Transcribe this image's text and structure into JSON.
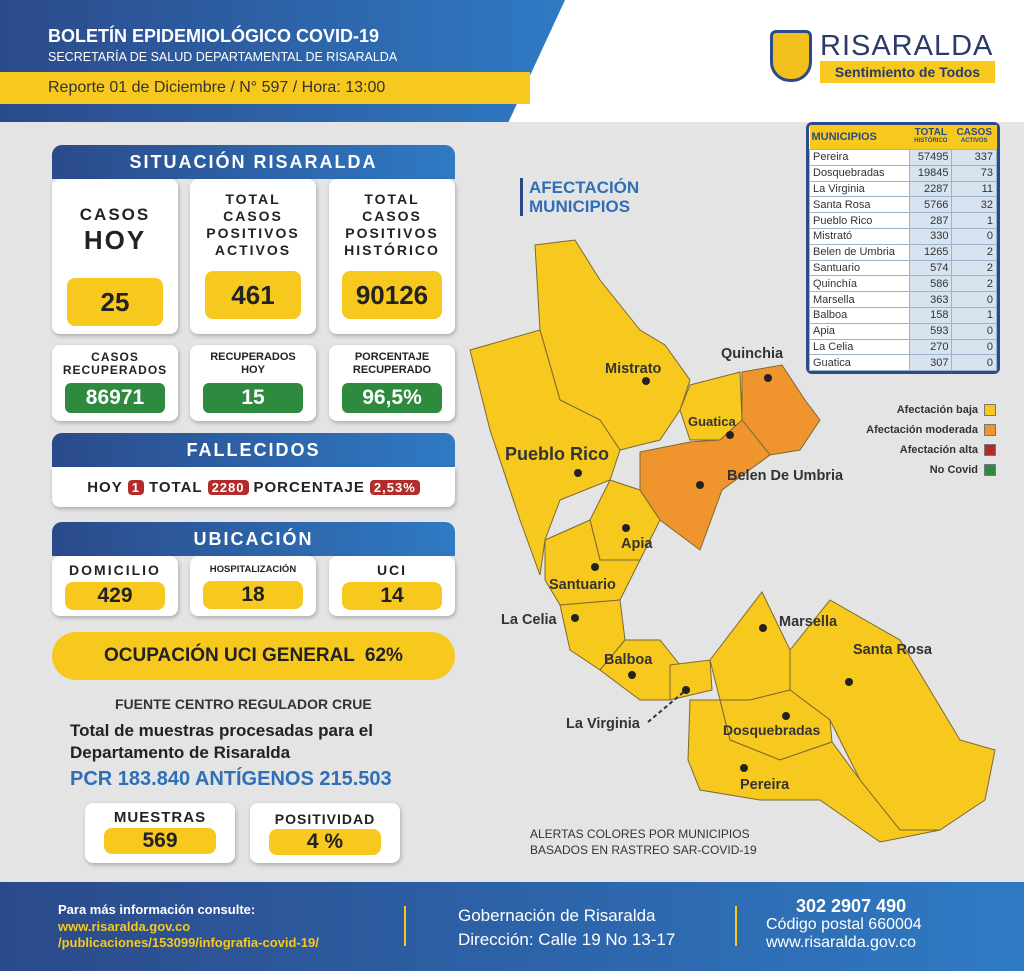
{
  "header": {
    "title": "BOLETÍN EPIDEMIOLÓGICO COVID-19",
    "subtitle": "SECRETARÍA DE SALUD DEPARTAMENTAL DE RISARALDA",
    "report": "Reporte 01 de Diciembre / N° 597 / Hora: 13:00"
  },
  "logo": {
    "name": "RISARALDA",
    "tagline": "Sentimiento de Todos"
  },
  "situacion": {
    "title": "SITUACIÓN RISARALDA",
    "casos_hoy": {
      "label1": "CASOS",
      "label2": "HOY",
      "value": "25"
    },
    "activos": {
      "label": "TOTAL CASOS POSITIVOS ACTIVOS",
      "value": "461"
    },
    "historico": {
      "label": "TOTAL CASOS POSITIVOS HISTÓRICO",
      "value": "90126"
    },
    "recuperados": {
      "label": "CASOS RECUPERADOS",
      "value": "86971"
    },
    "recuperados_hoy": {
      "label": "RECUPERADOS HOY",
      "value": "15"
    },
    "porcentaje": {
      "label": "PORCENTAJE RECUPERADO",
      "value": "96,5%"
    }
  },
  "fallecidos": {
    "title": "FALLECIDOS",
    "hoy_label": "HOY",
    "hoy": "1",
    "total_label": "TOTAL",
    "total": "2280",
    "pct_label": "PORCENTAJE",
    "pct": "2,53%"
  },
  "ubicacion": {
    "title": "UBICACIÓN",
    "domicilio_label": "DOMICILIO",
    "domicilio": "429",
    "hosp_label": "HOSPITALIZACIÓN",
    "hosp": "18",
    "uci_label": "UCI",
    "uci": "14"
  },
  "ocupacion": {
    "label": "OCUPACIÓN UCI GENERAL",
    "value": "62%"
  },
  "fuente": "FUENTE CENTRO REGULADOR CRUE",
  "muestras_text": "Total de muestras procesadas para el Departamento de Risaralda",
  "pcr": "PCR 183.840 ANTÍGENOS 215.503",
  "muestras": {
    "label": "MUESTRAS",
    "value": "569"
  },
  "positividad": {
    "label": "POSITIVIDAD",
    "value": "4 %"
  },
  "map": {
    "title1": "AFECTACIÓN",
    "title2": "MUNICIPIOS",
    "labels": {
      "mistrato": "Mistrato",
      "quinchia": "Quinchia",
      "guatica": "Guatica",
      "pueblo_rico": "Pueblo Rico",
      "belen": "Belen De Umbria",
      "apia": "Apia",
      "santuario": "Santuario",
      "la_celia": "La Celia",
      "balboa": "Balboa",
      "la_virginia": "La Virginia",
      "marsella": "Marsella",
      "santa_rosa": "Santa Rosa",
      "dosquebradas": "Dosquebradas",
      "pereira": "Pereira"
    },
    "note1": "ALERTAS COLORES POR MUNICIPIOS",
    "note2": "BASADOS EN RASTREO SAR-COVID-19",
    "legend": [
      {
        "label": "Afectación baja",
        "color": "#f7c81e"
      },
      {
        "label": "Afectación moderada",
        "color": "#f0952e"
      },
      {
        "label": "Afectación alta",
        "color": "#b22c2c"
      },
      {
        "label": "No Covid",
        "color": "#2e8a3e"
      }
    ]
  },
  "table": {
    "headers": [
      "MUNICIPIOS",
      "TOTAL",
      "HISTÓRICO",
      "CASOS",
      "ACTIVOS"
    ],
    "rows": [
      [
        "Pereira",
        "57495",
        "337"
      ],
      [
        "Dosquebradas",
        "19845",
        "73"
      ],
      [
        "La Virginia",
        "2287",
        "11"
      ],
      [
        "Santa Rosa",
        "5766",
        "32"
      ],
      [
        "Pueblo Rico",
        "287",
        "1"
      ],
      [
        "Mistrató",
        "330",
        "0"
      ],
      [
        "Belen de Umbria",
        "1265",
        "2"
      ],
      [
        "Santuario",
        "574",
        "2"
      ],
      [
        "Quinchía",
        "586",
        "2"
      ],
      [
        "Marsella",
        "363",
        "0"
      ],
      [
        "Balboa",
        "158",
        "1"
      ],
      [
        "Apia",
        "593",
        "0"
      ],
      [
        "La Celia",
        "270",
        "0"
      ],
      [
        "Guatica",
        "307",
        "0"
      ]
    ]
  },
  "footer": {
    "info": "Para más información consulte:",
    "url1": "www.risaralda.gov.co",
    "url2": "/publicaciones/153099/infografia-covid-19/",
    "gov": "Gobernación de Risaralda",
    "dir": "Dirección: Calle 19 No 13-17",
    "phone": "302 2907 490",
    "postal": "Código postal 660004",
    "web": "www.risaralda.gov.co"
  }
}
